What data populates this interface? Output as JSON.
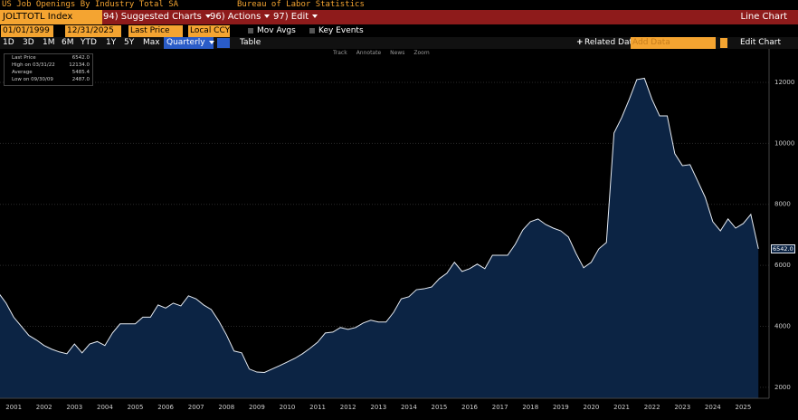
{
  "header": {
    "title": "US Job Openings By Industry Total SA",
    "source": "Bureau of Labor Statistics"
  },
  "toolbar": {
    "ticker": "JOLTTOTL Index",
    "suggested": "94) Suggested Charts",
    "actions": "96) Actions",
    "edit": "97) Edit",
    "chart_type": "Line Chart"
  },
  "controls": {
    "start_date": "01/01/1999",
    "end_date": "12/31/2025",
    "field": "Last Price",
    "currency": "Local CCY",
    "mov_avgs": "Mov Avgs",
    "key_events": "Key Events"
  },
  "ranges": [
    "1D",
    "3D",
    "1M",
    "6M",
    "YTD",
    "1Y",
    "5Y",
    "Max"
  ],
  "frequency": "Quarterly",
  "table": "Table",
  "related": "Related Dat",
  "add_data": "Add Data",
  "edit_chart": "Edit Chart",
  "chart_tools": [
    "Track",
    "Annotate",
    "News",
    "Zoom"
  ],
  "legend": [
    {
      "label": "Last Price",
      "value": "6542.0"
    },
    {
      "label": "High on 03/31/22",
      "value": "12134.0"
    },
    {
      "label": "Average",
      "value": "5485.4"
    },
    {
      "label": "Low on 09/30/09",
      "value": "2487.0"
    }
  ],
  "chart_data": {
    "type": "area",
    "x": [
      2001,
      2001.25,
      2001.5,
      2001.75,
      2002,
      2002.25,
      2002.5,
      2002.75,
      2003,
      2003.25,
      2003.5,
      2003.75,
      2004,
      2004.25,
      2004.5,
      2004.75,
      2005,
      2005.25,
      2005.5,
      2005.75,
      2006,
      2006.25,
      2006.5,
      2006.75,
      2007,
      2007.25,
      2007.5,
      2007.75,
      2008,
      2008.25,
      2008.5,
      2008.75,
      2009,
      2009.25,
      2009.5,
      2009.75,
      2010,
      2010.25,
      2010.5,
      2010.75,
      2011,
      2011.25,
      2011.5,
      2011.75,
      2012,
      2012.25,
      2012.5,
      2012.75,
      2013,
      2013.25,
      2013.5,
      2013.75,
      2014,
      2014.25,
      2014.5,
      2014.75,
      2015,
      2015.25,
      2015.5,
      2015.75,
      2016,
      2016.25,
      2016.5,
      2016.75,
      2017,
      2017.25,
      2017.5,
      2017.75,
      2018,
      2018.25,
      2018.5,
      2018.75,
      2019,
      2019.25,
      2019.5,
      2019.75,
      2020,
      2020.25,
      2020.5,
      2020.75,
      2021,
      2021.25,
      2021.5,
      2021.75,
      2022,
      2022.25,
      2022.5,
      2022.75,
      2023,
      2023.25,
      2023.5,
      2023.75,
      2024,
      2024.25,
      2024.5,
      2024.75,
      2025,
      2025.25,
      2025.5,
      2025.75,
      2026
    ],
    "series": [
      {
        "name": "Last Price",
        "color": "#e6ebf2",
        "fill": "#0c2444",
        "values": [
          5100,
          4760,
          4300,
          4000,
          3700,
          3550,
          3370,
          3250,
          3160,
          3100,
          3420,
          3130,
          3420,
          3500,
          3370,
          3780,
          4080,
          4080,
          4080,
          4300,
          4300,
          4700,
          4600,
          4760,
          4670,
          5000,
          4900,
          4700,
          4550,
          4170,
          3720,
          3190,
          3130,
          2600,
          2500,
          2487,
          2600,
          2710,
          2830,
          2950,
          3100,
          3280,
          3480,
          3780,
          3810,
          3960,
          3900,
          3960,
          4110,
          4200,
          4140,
          4140,
          4460,
          4900,
          4970,
          5200,
          5230,
          5290,
          5560,
          5740,
          6100,
          5800,
          5890,
          6040,
          5890,
          6330,
          6330,
          6330,
          6690,
          7160,
          7430,
          7520,
          7340,
          7220,
          7130,
          6930,
          6390,
          5920,
          6100,
          6540,
          6750,
          10340,
          10840,
          11440,
          12090,
          12134,
          11440,
          10900,
          10900,
          9660,
          9270,
          9300,
          8770,
          8230,
          7430,
          7130,
          7520,
          7220,
          7370,
          7670,
          6542
        ]
      }
    ],
    "xlim": [
      2001.05,
      2026.35
    ],
    "xticks": [
      {
        "value": 2001.5,
        "label": "2001"
      },
      {
        "value": 2002.5,
        "label": "2002"
      },
      {
        "value": 2003.5,
        "label": "2003"
      },
      {
        "value": 2004.5,
        "label": "2004"
      },
      {
        "value": 2005.5,
        "label": "2005"
      },
      {
        "value": 2006.5,
        "label": "2006"
      },
      {
        "value": 2007.5,
        "label": "2007"
      },
      {
        "value": 2008.5,
        "label": "2008"
      },
      {
        "value": 2009.5,
        "label": "2009"
      },
      {
        "value": 2010.5,
        "label": "2010"
      },
      {
        "value": 2011.5,
        "label": "2011"
      },
      {
        "value": 2012.5,
        "label": "2012"
      },
      {
        "value": 2013.5,
        "label": "2013"
      },
      {
        "value": 2014.5,
        "label": "2014"
      },
      {
        "value": 2015.5,
        "label": "2015"
      },
      {
        "value": 2016.5,
        "label": "2016"
      },
      {
        "value": 2017.5,
        "label": "2017"
      },
      {
        "value": 2018.5,
        "label": "2018"
      },
      {
        "value": 2019.5,
        "label": "2019"
      },
      {
        "value": 2020.5,
        "label": "2020"
      },
      {
        "value": 2021.5,
        "label": "2021"
      },
      {
        "value": 2022.5,
        "label": "2022"
      },
      {
        "value": 2023.5,
        "label": "2023"
      },
      {
        "value": 2024.5,
        "label": "2024"
      },
      {
        "value": 2025.5,
        "label": "2025"
      }
    ],
    "ylim": [
      1640,
      13050
    ],
    "yticks": [
      2000,
      4000,
      6000,
      8000,
      10000,
      12000
    ],
    "grid": true
  }
}
